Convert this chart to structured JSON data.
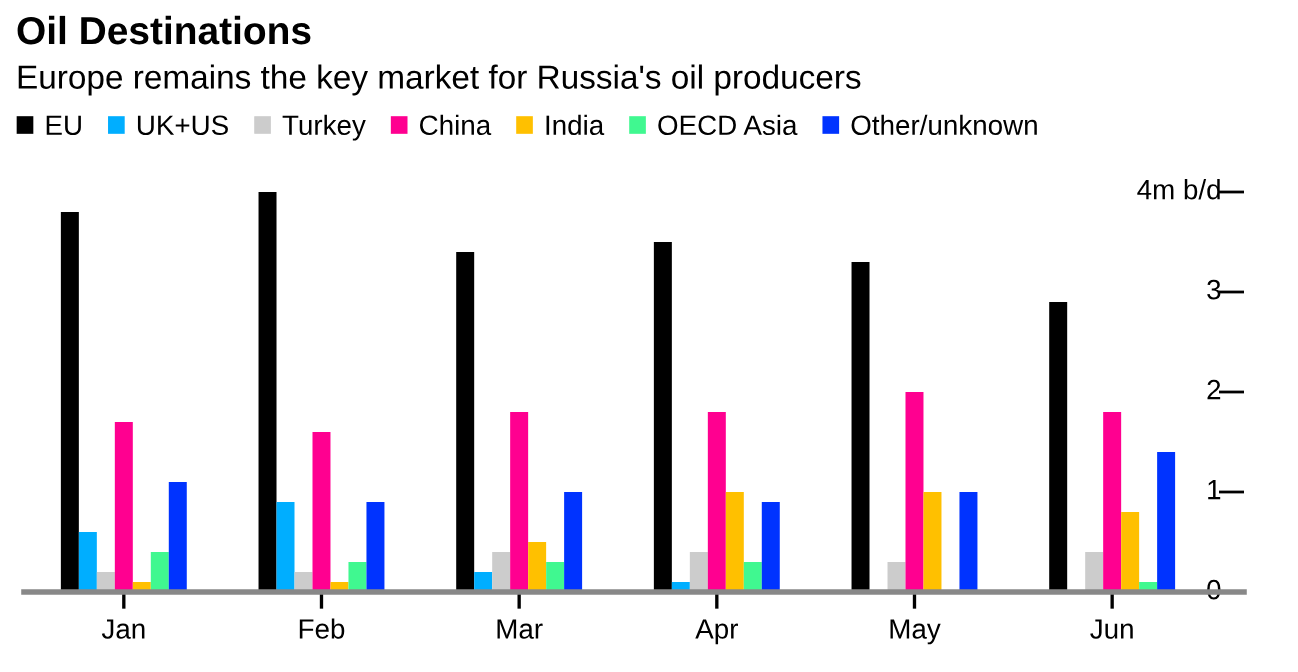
{
  "chart_data": {
    "type": "bar",
    "title": "Oil Destinations",
    "subtitle": "Europe remains the key market for Russia's oil producers",
    "categories": [
      "Jan",
      "Feb",
      "Mar",
      "Apr",
      "May",
      "Jun"
    ],
    "series": [
      {
        "name": "EU",
        "color": "#000000",
        "values": [
          3.8,
          4.0,
          3.4,
          3.5,
          3.3,
          2.9
        ]
      },
      {
        "name": "UK+US",
        "color": "#00aeff",
        "values": [
          0.6,
          0.9,
          0.2,
          0.1,
          null,
          null
        ]
      },
      {
        "name": "Turkey",
        "color": "#cccccc",
        "values": [
          0.2,
          0.2,
          0.4,
          0.4,
          0.3,
          0.4
        ]
      },
      {
        "name": "China",
        "color": "#ff0090",
        "values": [
          1.7,
          1.6,
          1.8,
          1.8,
          2.0,
          1.8
        ]
      },
      {
        "name": "India",
        "color": "#ffc000",
        "values": [
          0.1,
          0.1,
          0.5,
          1.0,
          1.0,
          0.8
        ]
      },
      {
        "name": "OECD Asia",
        "color": "#40f890",
        "values": [
          0.4,
          0.3,
          0.3,
          0.3,
          null,
          0.1
        ]
      },
      {
        "name": "Other/unknown",
        "color": "#0033ff",
        "values": [
          1.1,
          0.9,
          1.0,
          0.9,
          1.0,
          1.4
        ]
      }
    ],
    "ylim": [
      0,
      4
    ],
    "yticks": [
      0,
      1,
      2,
      3,
      {
        "value": 4,
        "label": "4m b/d"
      }
    ],
    "grid": false,
    "legend": "top left"
  }
}
